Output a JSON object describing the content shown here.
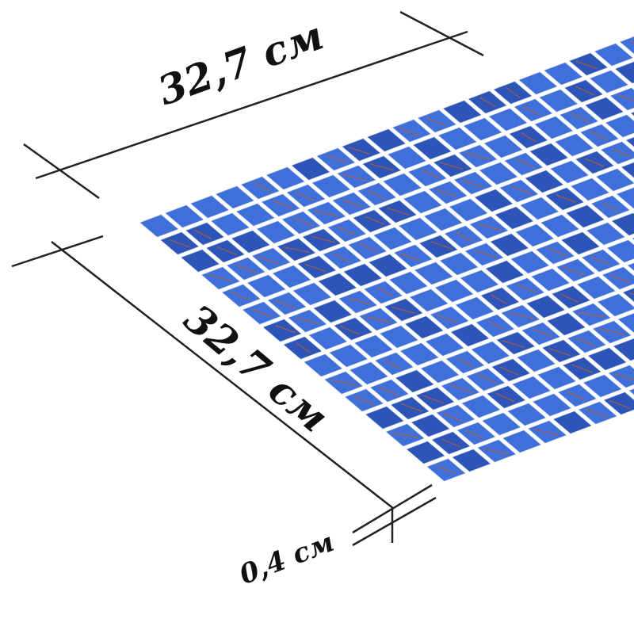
{
  "dimensions": {
    "width_label": "32,7 см",
    "length_label": "32,7 см",
    "thickness_label": "0,4 см"
  },
  "colors": {
    "tile": "#3f6fd8",
    "tile_dark": "#2d55b8",
    "grout": "#c9d6f2",
    "vein": "#c85a2a",
    "line": "#222222"
  }
}
